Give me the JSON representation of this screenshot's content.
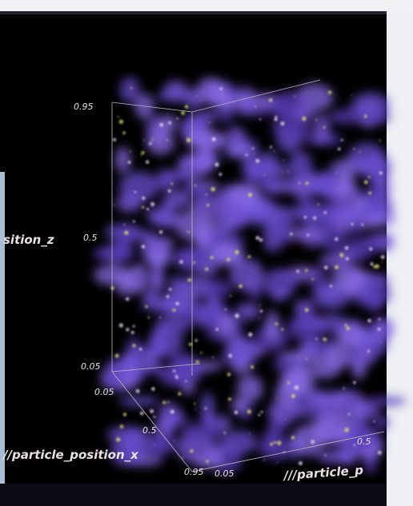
{
  "axes": {
    "z": {
      "title": "sition_z",
      "ticks": [
        "0.95",
        "0.5",
        "0.05"
      ]
    },
    "x": {
      "title": "//particle_position_x",
      "ticks": [
        "0.05",
        "0.5",
        "0.95"
      ]
    },
    "y": {
      "title": "///particle_p",
      "ticks": [
        "0.05",
        "0.5"
      ]
    }
  }
}
